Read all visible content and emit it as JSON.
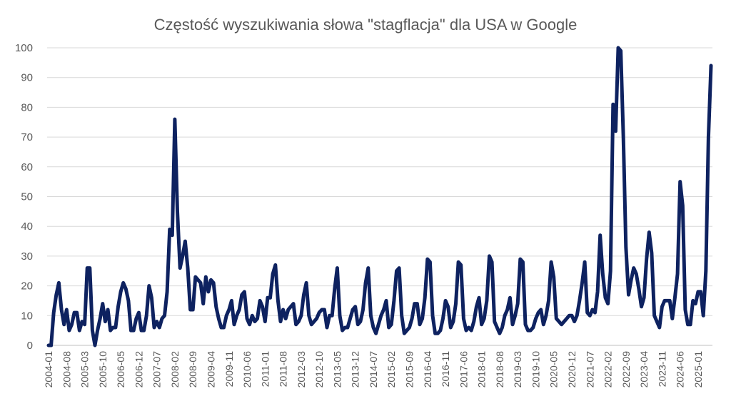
{
  "chart_data": {
    "type": "line",
    "title": "Częstość wyszukiwania słowa \"stagflacja\" dla USA w Google",
    "xlabel": "",
    "ylabel": "",
    "ylim": [
      0,
      100
    ],
    "yticks": [
      0,
      10,
      20,
      30,
      40,
      50,
      60,
      70,
      80,
      90,
      100
    ],
    "grid": "horizontal",
    "legend": "none",
    "line_color": "#0e2260",
    "x_tick_labels": [
      "2004-01",
      "2004-08",
      "2005-03",
      "2005-10",
      "2006-05",
      "2006-12",
      "2007-07",
      "2008-02",
      "2008-09",
      "2009-04",
      "2009-11",
      "2010-06",
      "2011-01",
      "2011-08",
      "2012-03",
      "2012-10",
      "2013-05",
      "2013-12",
      "2014-07",
      "2015-02",
      "2015-09",
      "2016-04",
      "2016-11",
      "2017-06",
      "2018-01",
      "2018-08",
      "2019-03",
      "2019-10",
      "2020-05",
      "2020-12",
      "2021-07",
      "2022-02",
      "2022-09",
      "2023-04",
      "2023-11",
      "2024-06",
      "2025-01"
    ],
    "series": [
      {
        "start": "2004-01",
        "frequency": "monthly",
        "values": [
          0,
          0,
          11,
          17,
          21,
          12,
          7,
          12,
          5,
          7,
          11,
          11,
          5,
          8,
          7,
          26,
          26,
          5,
          0,
          5,
          9,
          14,
          8,
          12,
          5,
          6,
          6,
          13,
          18,
          21,
          19,
          15,
          5,
          5,
          9,
          11,
          5,
          5,
          10,
          20,
          16,
          6,
          8,
          6,
          9,
          10,
          18,
          39,
          37,
          76,
          45,
          26,
          30,
          35,
          26,
          12,
          12,
          23,
          22,
          21,
          14,
          23,
          18,
          22,
          21,
          13,
          9,
          6,
          6,
          10,
          12,
          15,
          7,
          10,
          12,
          17,
          18,
          9,
          7,
          10,
          8,
          9,
          15,
          13,
          8,
          16,
          16,
          24,
          27,
          15,
          8,
          12,
          9,
          12,
          13,
          14,
          7,
          8,
          10,
          17,
          21,
          10,
          7,
          8,
          9,
          11,
          12,
          12,
          6,
          10,
          10,
          19,
          26,
          10,
          5,
          6,
          6,
          9,
          12,
          13,
          7,
          8,
          12,
          21,
          26,
          10,
          6,
          4,
          7,
          10,
          12,
          15,
          6,
          7,
          15,
          25,
          26,
          10,
          4,
          5,
          6,
          9,
          14,
          14,
          7,
          9,
          16,
          29,
          28,
          10,
          4,
          4,
          5,
          9,
          15,
          13,
          6,
          8,
          14,
          28,
          27,
          9,
          5,
          6,
          5,
          8,
          13,
          16,
          7,
          9,
          15,
          30,
          28,
          8,
          6,
          4,
          6,
          10,
          12,
          16,
          7,
          10,
          14,
          29,
          28,
          7,
          5,
          5,
          6,
          9,
          11,
          12,
          7,
          10,
          15,
          28,
          23,
          9,
          8,
          7,
          8,
          9,
          10,
          10,
          8,
          10,
          15,
          21,
          28,
          11,
          10,
          12,
          11,
          18,
          37,
          24,
          16,
          14,
          25,
          81,
          72,
          100,
          99,
          70,
          33,
          17,
          22,
          26,
          24,
          19,
          13,
          16,
          29,
          38,
          31,
          10,
          8,
          6,
          13,
          15,
          15,
          15,
          9,
          16,
          24,
          55,
          47,
          12,
          7,
          7,
          15,
          14,
          18,
          18,
          10,
          25,
          70,
          94
        ]
      }
    ]
  }
}
